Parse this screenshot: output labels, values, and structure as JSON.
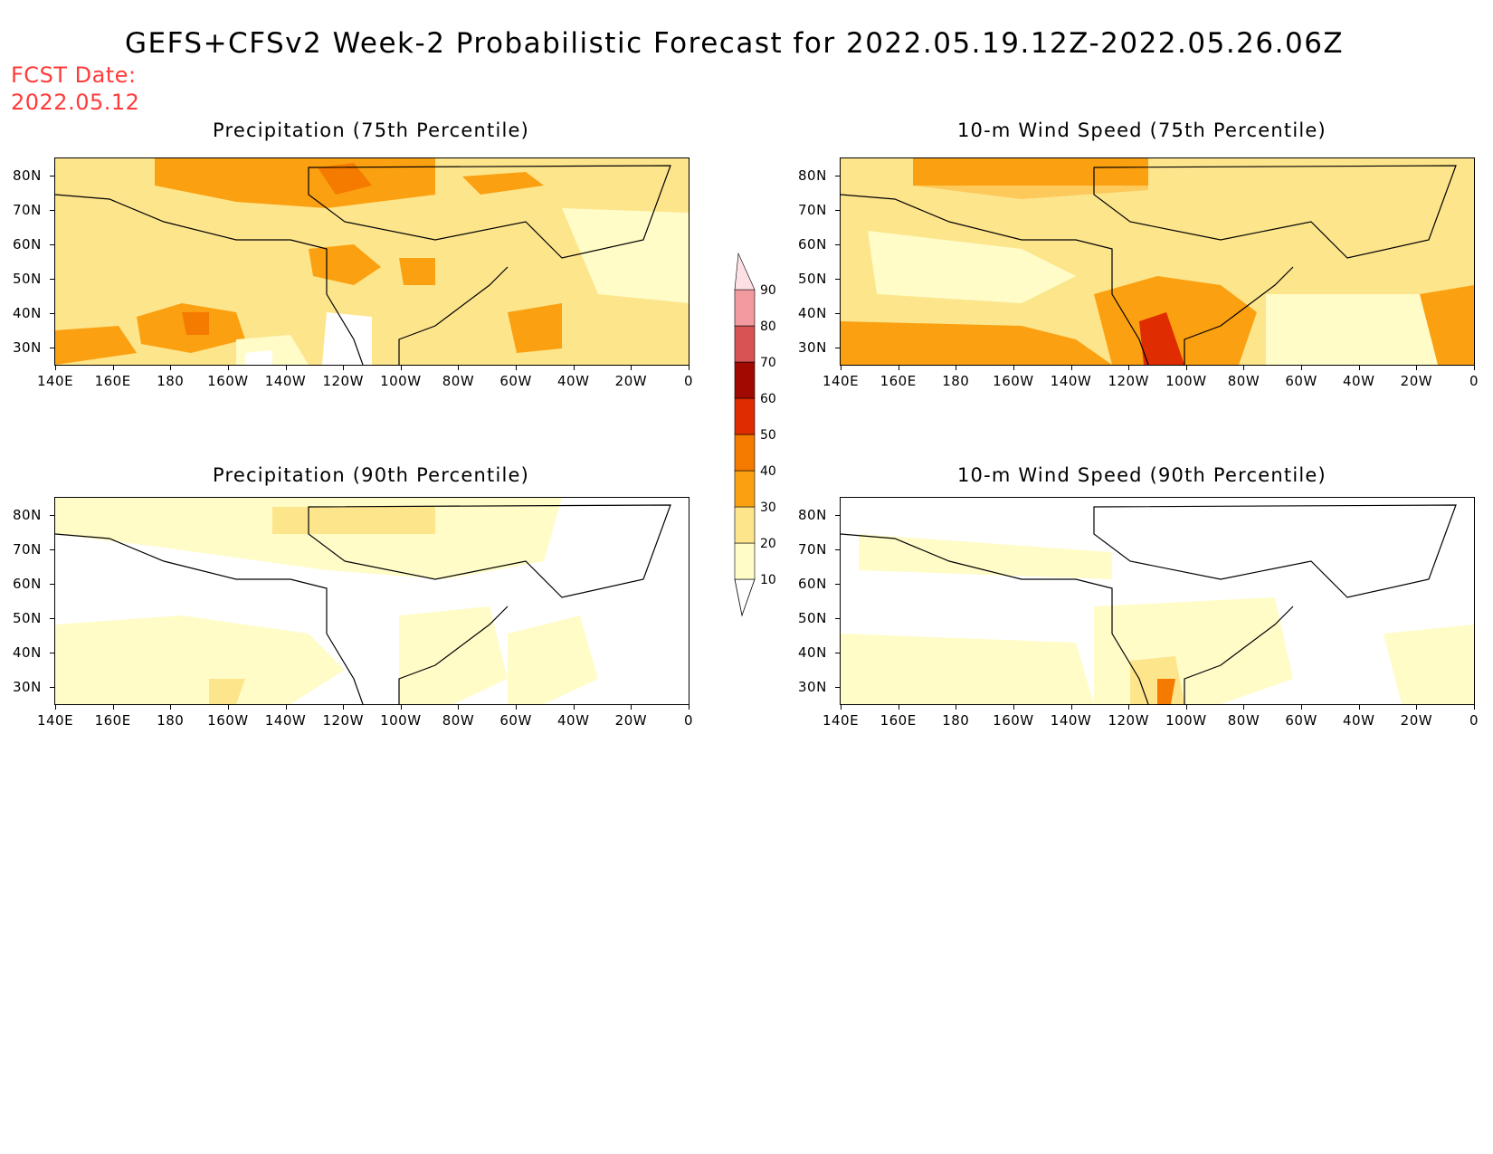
{
  "title": "GEFS+CFSv2 Week-2 Probabilistic Forecast for 2022.05.19.12Z-2022.05.26.06Z",
  "fcst_label": "FCST Date:",
  "fcst_date": "2022.05.12",
  "panels": [
    {
      "title": "Precipitation (75th Percentile)"
    },
    {
      "title": "10-m Wind Speed (75th Percentile)"
    },
    {
      "title": "Precipitation (90th Percentile)"
    },
    {
      "title": "10-m Wind Speed (90th Percentile)"
    }
  ],
  "lat_labels": [
    "80N",
    "70N",
    "60N",
    "50N",
    "40N",
    "30N"
  ],
  "lon_labels": [
    "140E",
    "160E",
    "180",
    "160W",
    "140W",
    "120W",
    "100W",
    "80W",
    "60W",
    "40W",
    "20W",
    "0"
  ],
  "legend": {
    "levels": [
      "10",
      "20",
      "30",
      "40",
      "50",
      "60",
      "70",
      "80",
      "90"
    ],
    "colors": [
      "#fffcc8",
      "#fde58c",
      "#fba010",
      "#f57a00",
      "#df2c00",
      "#a00a00",
      "#d85454",
      "#f29aa0",
      "#fde0e4"
    ]
  }
}
